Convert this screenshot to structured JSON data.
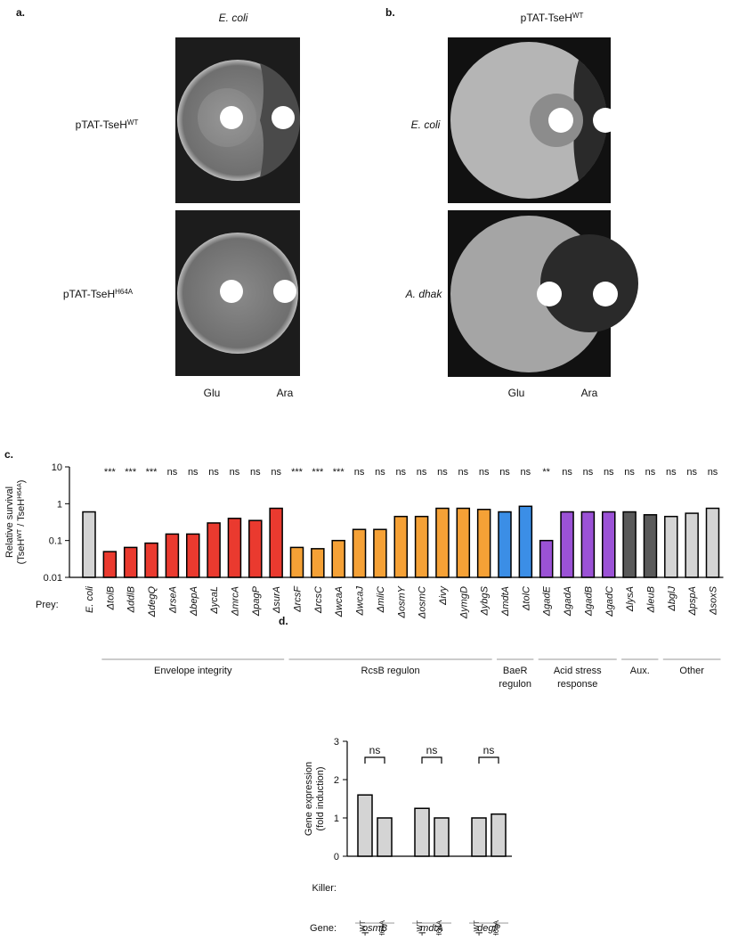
{
  "panel_a": {
    "label": "a.",
    "title": "E. coli",
    "rows": [
      {
        "base": "pTAT-TseH",
        "sup": "WT"
      },
      {
        "base": "pTAT-TseH",
        "sup": "H64A"
      }
    ],
    "columns": [
      "Glu",
      "Ara"
    ]
  },
  "panel_b": {
    "label": "b.",
    "title": {
      "base": "pTAT-TseH",
      "sup": "WT"
    },
    "rows": [
      "E. coli",
      "A. dhak"
    ],
    "columns": [
      "Glu",
      "Ara"
    ]
  },
  "chart_data": [
    {
      "type": "bar",
      "panel_label": "c.",
      "log_y": true,
      "y_label": {
        "line1": "Relative survival",
        "line2": [
          "(TseH",
          "WT",
          " / TseH",
          "H64A",
          ")"
        ]
      },
      "x_label": "Prey:",
      "categories": [
        "E. coli",
        "ΔtolB",
        "ΔddlB",
        "ΔdegQ",
        "ΔrseA",
        "ΔbepA",
        "ΔycaL",
        "ΔmrcA",
        "ΔpagP",
        "ΔsurA",
        "ΔrcsF",
        "ΔrcsC",
        "ΔwcaA",
        "ΔwcaJ",
        "ΔmliC",
        "ΔosmY",
        "ΔosmC",
        "Δivy",
        "ΔymgD",
        "ΔybgS",
        "ΔmdtA",
        "ΔtolC",
        "ΔgadE",
        "ΔgadA",
        "ΔgadB",
        "ΔgadC",
        "ΔlysA",
        "ΔleuB",
        "ΔbglJ",
        "ΔpspA",
        "ΔsoxS"
      ],
      "values": [
        0.6,
        0.05,
        0.065,
        0.085,
        0.15,
        0.15,
        0.3,
        0.4,
        0.35,
        0.75,
        0.065,
        0.06,
        0.1,
        0.2,
        0.2,
        0.45,
        0.45,
        0.75,
        0.75,
        0.7,
        0.6,
        0.85,
        0.1,
        0.6,
        0.6,
        0.6,
        0.6,
        0.5,
        0.45,
        0.55,
        0.75
      ],
      "colors": [
        "#d4d4d4",
        "#ea3a2f",
        "#ea3a2f",
        "#ea3a2f",
        "#ea3a2f",
        "#ea3a2f",
        "#ea3a2f",
        "#ea3a2f",
        "#ea3a2f",
        "#ea3a2f",
        "#f5a136",
        "#f5a136",
        "#f5a136",
        "#f5a136",
        "#f5a136",
        "#f5a136",
        "#f5a136",
        "#f5a136",
        "#f5a136",
        "#f5a136",
        "#3b8ee6",
        "#3b8ee6",
        "#9b52d6",
        "#9b52d6",
        "#9b52d6",
        "#9b52d6",
        "#5a5a5a",
        "#5a5a5a",
        "#d4d4d4",
        "#d4d4d4",
        "#d4d4d4"
      ],
      "annotations": [
        null,
        "***",
        "***",
        "***",
        "ns",
        "ns",
        "ns",
        "ns",
        "ns",
        "ns",
        "***",
        "***",
        "***",
        "ns",
        "ns",
        "ns",
        "ns",
        "ns",
        "ns",
        "ns",
        "ns",
        "ns",
        "**",
        "ns",
        "ns",
        "ns",
        "ns",
        "ns",
        "ns",
        "ns",
        "ns"
      ],
      "groups": [
        {
          "lines": [
            "Envelope integrity"
          ]
        },
        {
          "lines": [
            "RcsB regulon"
          ]
        },
        {
          "lines": [
            "BaeR",
            "regulon"
          ]
        },
        {
          "lines": [
            "Acid stress",
            "response"
          ]
        },
        {
          "lines": [
            "Aux."
          ]
        },
        {
          "lines": [
            "Other"
          ]
        }
      ],
      "ylim": [
        0.01,
        10
      ],
      "yticks": [
        0.01,
        0.1,
        1,
        10
      ]
    },
    {
      "type": "grouped_bar",
      "panel_label": "d.",
      "y_label": [
        "Gene expression",
        "(fold induction)"
      ],
      "killer_label": "Killer:",
      "gene_label": "Gene:",
      "categories": [
        "osmB",
        "mdtA",
        "degP"
      ],
      "series": [
        {
          "label": {
            "base": "TseH",
            "sup": "WT"
          },
          "color": "#d4d4d4",
          "values": [
            1.6,
            1.25,
            1.0
          ]
        },
        {
          "label": {
            "base": "TseH",
            "sup": "H64A"
          },
          "color": "#d4d4d4",
          "values": [
            1.0,
            1.0,
            1.1
          ]
        }
      ],
      "significance": [
        "ns",
        "ns",
        "ns"
      ],
      "ylim": [
        0,
        3
      ],
      "yticks": [
        0,
        1,
        2,
        3
      ]
    }
  ]
}
